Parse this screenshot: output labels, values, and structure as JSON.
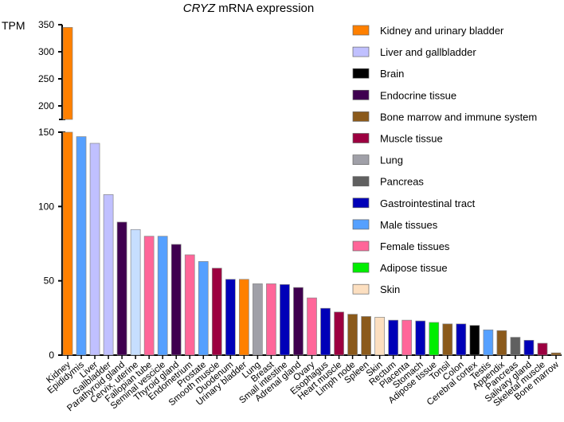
{
  "chart_data": {
    "type": "bar",
    "title_gene": "CRYZ",
    "title_rest": " mRNA expression",
    "ylabel": "TPM",
    "ylim_lower": [
      0,
      150
    ],
    "ylim_upper": [
      180,
      350
    ],
    "yticks_lower": [
      0,
      50,
      100,
      150
    ],
    "yticks_upper": [
      200,
      250,
      300,
      350
    ],
    "legend_position": "right",
    "legend": [
      {
        "name": "Kidney and urinary bladder",
        "color": "#FF8000"
      },
      {
        "name": "Liver and gallbladder",
        "color": "#C0C0FF"
      },
      {
        "name": "Brain",
        "color": "#000000"
      },
      {
        "name": "Endocrine tissue",
        "color": "#3F004F"
      },
      {
        "name": "Bone marrow and immune system",
        "color": "#8B5A1B"
      },
      {
        "name": "Muscle tissue",
        "color": "#9C0040"
      },
      {
        "name": "Lung",
        "color": "#A0A0A8"
      },
      {
        "name": "Pancreas",
        "color": "#606060"
      },
      {
        "name": "Gastrointestinal tract",
        "color": "#0000B8"
      },
      {
        "name": "Male tissues",
        "color": "#55A0FF"
      },
      {
        "name": "Female tissues",
        "color": "#FF6699"
      },
      {
        "name": "Adipose tissue",
        "color": "#00EE00"
      },
      {
        "name": "Skin",
        "color": "#FCDFC0"
      }
    ],
    "categories": [
      "Kidney",
      "Epididymis",
      "Liver",
      "Gallbladder",
      "Parathyroid gland",
      "Cervix, uterine",
      "Fallopian tube",
      "Seminal vescicle",
      "Thyroid gland",
      "Endometrium",
      "Prostate",
      "Smooth muscle",
      "Duodenum",
      "Urinary bladder",
      "Lung",
      "Breast",
      "Small intestine",
      "Adrenal gland",
      "Ovary",
      "Esophagus",
      "Heart muscle",
      "Limph node",
      "Spleen",
      "Skin",
      "Rectum",
      "Placenta",
      "Stomach",
      "Adipose tissue",
      "Tonsil",
      "Colon",
      "Cerebral cortex",
      "Testis",
      "Appendix",
      "Pancreas",
      "Salivary gland",
      "Skeletal muscle",
      "Bone marrow"
    ],
    "values": [
      345,
      147,
      142.5,
      108,
      89.5,
      84.5,
      80,
      80,
      74.5,
      67.5,
      63,
      58.5,
      51,
      51,
      48,
      48,
      47.5,
      45.5,
      38.5,
      31.5,
      29,
      27.5,
      26,
      25.5,
      23.5,
      23.5,
      23,
      22,
      21,
      21,
      20,
      17,
      16.5,
      12,
      10,
      8,
      1.5
    ],
    "colors": [
      "#FF8000",
      "#55A0FF",
      "#C0C0FF",
      "#C0C0FF",
      "#3F004F",
      "#C6DEFF",
      "#FF6699",
      "#55A0FF",
      "#3F004F",
      "#FF6699",
      "#55A0FF",
      "#9C0040",
      "#0000B8",
      "#FF8000",
      "#A0A0A8",
      "#FF6699",
      "#0000B8",
      "#3F004F",
      "#FF6699",
      "#0000B8",
      "#9C0040",
      "#8B5A1B",
      "#8B5A1B",
      "#FCDFC0",
      "#0000B8",
      "#FF6699",
      "#0000B8",
      "#00EE00",
      "#8B5A1B",
      "#0000B8",
      "#000000",
      "#55A0FF",
      "#8B5A1B",
      "#606060",
      "#0000B8",
      "#9C0040",
      "#8B5A1B"
    ]
  }
}
